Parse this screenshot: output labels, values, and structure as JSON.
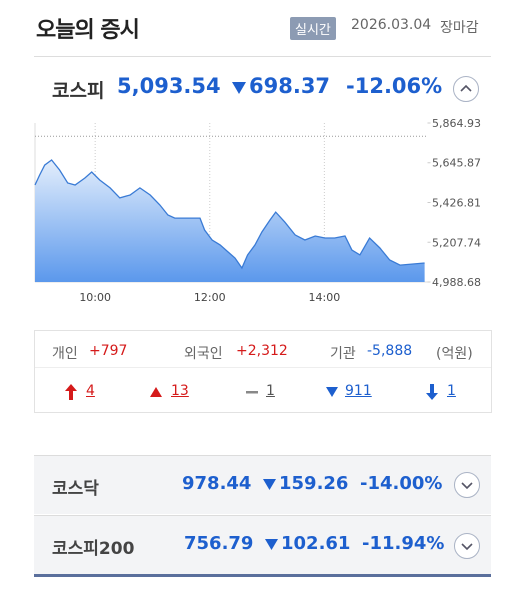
{
  "header": {
    "title": "오늘의 증시",
    "badge": "실시간",
    "date": "2026.03.04",
    "status": "장마감"
  },
  "main_index": {
    "name": "코스피",
    "value": "5,093.54",
    "change": "698.37",
    "change_rate": "-12.06%"
  },
  "chart_data": {
    "type": "area",
    "color": "#3a7bd5",
    "x": [
      8.95,
      9.03,
      9.12,
      9.24,
      9.38,
      9.52,
      9.65,
      9.82,
      9.94,
      10.08,
      10.26,
      10.43,
      10.61,
      10.78,
      10.96,
      11.13,
      11.27,
      11.39,
      11.57,
      11.83,
      11.91,
      12.04,
      12.18,
      12.32,
      12.44,
      12.56,
      12.66,
      12.79,
      12.91,
      13.05,
      13.15,
      13.31,
      13.49,
      13.66,
      13.84,
      14.01,
      14.18,
      14.36,
      14.48,
      14.62,
      14.79,
      14.97,
      15.14,
      15.32,
      15.75
    ],
    "values": [
      5523,
      5578,
      5633,
      5661,
      5606,
      5534,
      5523,
      5562,
      5595,
      5551,
      5507,
      5452,
      5468,
      5507,
      5468,
      5413,
      5358,
      5341,
      5341,
      5341,
      5275,
      5220,
      5193,
      5154,
      5121,
      5066,
      5138,
      5193,
      5264,
      5330,
      5374,
      5319,
      5248,
      5220,
      5242,
      5231,
      5231,
      5242,
      5165,
      5138,
      5231,
      5176,
      5110,
      5082,
      5093.54
    ],
    "xlim": [
      8.95,
      15.8
    ],
    "ylim": [
      4988.68,
      5864.93
    ],
    "xticks": [
      {
        "value": 10,
        "label": "10:00"
      },
      {
        "value": 12,
        "label": "12:00"
      },
      {
        "value": 14,
        "label": "14:00"
      }
    ],
    "yticks": [
      {
        "value": 4988.68,
        "label": "4,988.68"
      },
      {
        "value": 5207.74,
        "label": "5,207.74"
      },
      {
        "value": 5426.81,
        "label": "5,426.81"
      },
      {
        "value": 5645.87,
        "label": "5,645.87"
      },
      {
        "value": 5864.93,
        "label": "5,864.93"
      }
    ],
    "reference_line": 5791.91
  },
  "investors": [
    {
      "name": "개인",
      "value": "+797"
    },
    {
      "name": "외국인",
      "value": "+2,312"
    },
    {
      "name": "기관",
      "value": "-5,888"
    }
  ],
  "unit": "(억원)",
  "breadth": [
    "4",
    "13",
    "1",
    "911",
    "1"
  ],
  "other_indices": [
    {
      "name": "코스닥",
      "value": "978.44",
      "change": "159.26",
      "change_rate": "-14.00%"
    },
    {
      "name": "코스피200",
      "value": "756.79",
      "change": "102.61",
      "change_rate": "-11.94%"
    }
  ]
}
